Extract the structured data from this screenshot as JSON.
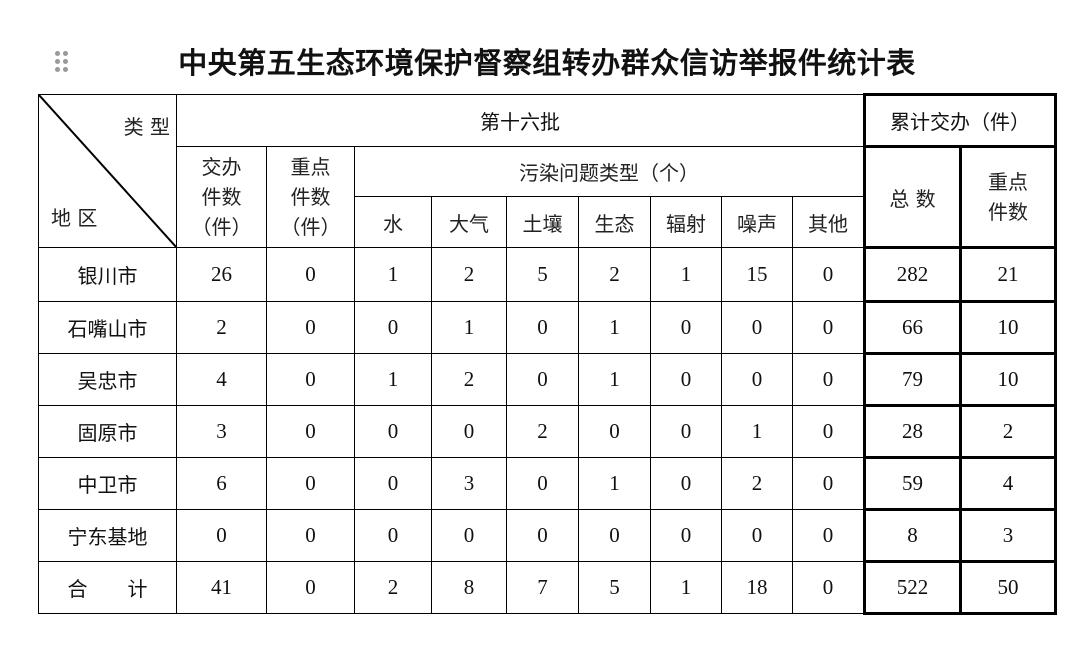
{
  "title": "中央第五生态环境保护督察组转办群众信访举报件统计表",
  "header": {
    "type_label": "类 型",
    "region_label": "地 区",
    "batch": "第十六批",
    "cumulative": "累计交办（件）",
    "assigned": [
      "交办",
      "件数",
      "（件）"
    ],
    "key": [
      "重点",
      "件数",
      "（件）"
    ],
    "pollution_types": "污染问题类型（个）",
    "pollution_cols": [
      "水",
      "大气",
      "土壤",
      "生态",
      "辐射",
      "噪声",
      "其他"
    ],
    "total": "总 数",
    "key_total": [
      "重点",
      "件数"
    ]
  },
  "rows": [
    {
      "region": "银川市",
      "values": [
        "26",
        "0",
        "1",
        "2",
        "5",
        "2",
        "1",
        "15",
        "0",
        "282",
        "21"
      ]
    },
    {
      "region": "石嘴山市",
      "values": [
        "2",
        "0",
        "0",
        "1",
        "0",
        "1",
        "0",
        "0",
        "0",
        "66",
        "10"
      ]
    },
    {
      "region": "吴忠市",
      "values": [
        "4",
        "0",
        "1",
        "2",
        "0",
        "1",
        "0",
        "0",
        "0",
        "79",
        "10"
      ]
    },
    {
      "region": "固原市",
      "values": [
        "3",
        "0",
        "0",
        "0",
        "2",
        "0",
        "0",
        "1",
        "0",
        "28",
        "2"
      ]
    },
    {
      "region": "中卫市",
      "values": [
        "6",
        "0",
        "0",
        "3",
        "0",
        "1",
        "0",
        "2",
        "0",
        "59",
        "4"
      ]
    },
    {
      "region": "宁东基地",
      "values": [
        "0",
        "0",
        "0",
        "0",
        "0",
        "0",
        "0",
        "0",
        "0",
        "8",
        "3"
      ]
    },
    {
      "region": "合　　计",
      "values": [
        "41",
        "0",
        "2",
        "8",
        "7",
        "5",
        "1",
        "18",
        "0",
        "522",
        "50"
      ]
    }
  ]
}
